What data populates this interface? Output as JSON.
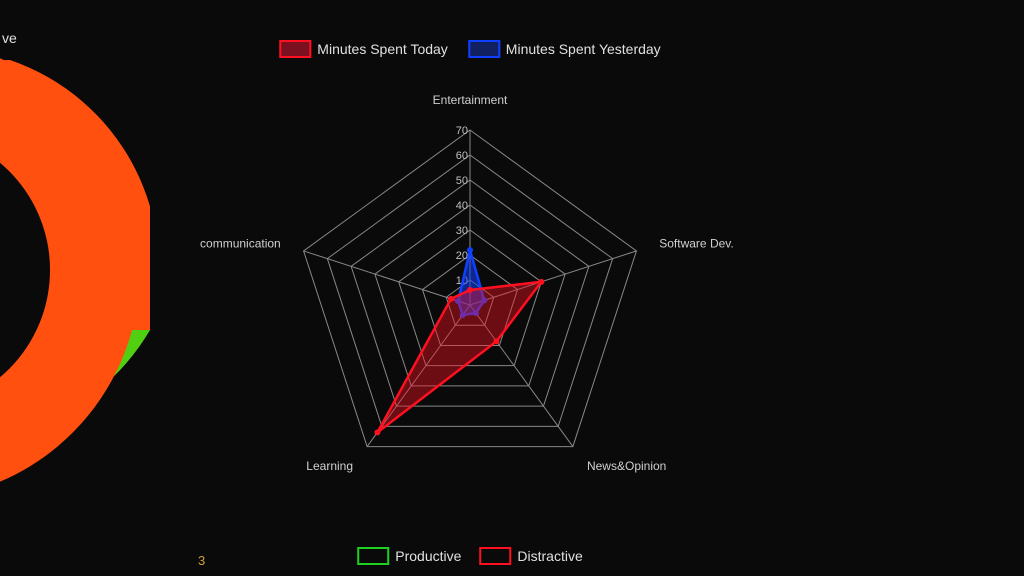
{
  "radar": {
    "type": "radar",
    "axes": [
      "Entertainment",
      "Software Dev.",
      "News&Opinion",
      "Learning",
      "communication"
    ],
    "max": 70,
    "tick_step": 10,
    "ticks": [
      10,
      20,
      30,
      40,
      50,
      60,
      70
    ],
    "series": [
      {
        "name": "Minutes Spent Today",
        "color_stroke": "#ff1020",
        "color_fill": "#ff1020",
        "fill_opacity": 0.4,
        "stroke_width": 2.5,
        "values": [
          6,
          30,
          18,
          63,
          8
        ]
      },
      {
        "name": "Minutes Spent Yesterday",
        "color_stroke": "#1040ff",
        "color_fill": "#1040ff",
        "fill_opacity": 0.55,
        "stroke_width": 2.5,
        "values": [
          22,
          6,
          4,
          5,
          5
        ]
      }
    ],
    "grid_color": "#888888",
    "grid_width": 1,
    "background": "#0a0a0a",
    "label_fontsize": 12,
    "tick_fontsize": 11
  },
  "legend_top": {
    "items": [
      {
        "label": "Minutes Spent Today",
        "fill": "#7a1020",
        "stroke": "#ff1020"
      },
      {
        "label": "Minutes Spent Yesterday",
        "fill": "#102060",
        "stroke": "#1040ff"
      }
    ]
  },
  "legend_bottom": {
    "items": [
      {
        "label": "Productive",
        "fill": "rgba(0,0,0,0)",
        "stroke": "#20d020"
      },
      {
        "label": "Distractive",
        "fill": "rgba(0,0,0,0)",
        "stroke": "#ff1020"
      }
    ]
  },
  "donut": {
    "type": "donut",
    "partial_label": "ve",
    "colors": {
      "top": "#ff5010",
      "bottom": "#50d010",
      "inner": "#101010"
    }
  },
  "bottom_axis_num": "3"
}
